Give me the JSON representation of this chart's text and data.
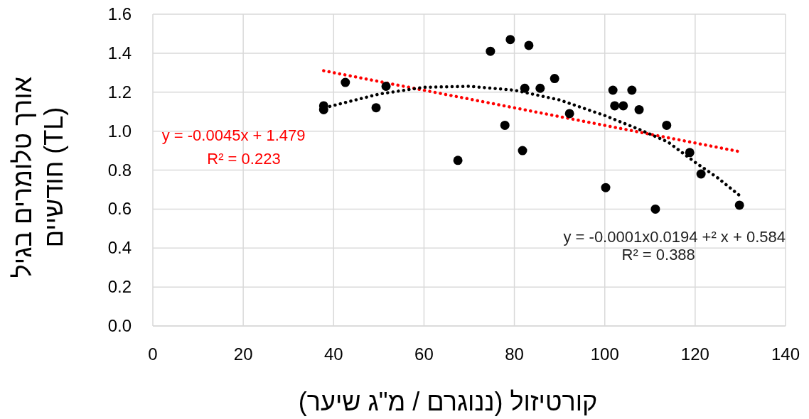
{
  "chart_data": {
    "type": "scatter",
    "xlabel": "קורטיזול (ננוגרם / מ\"ג שיער)",
    "ylabel": "אורך טלומרים בגיל\nחודשיים (TL)",
    "xlim": [
      0,
      140
    ],
    "xticks": [
      0,
      20,
      40,
      60,
      80,
      100,
      120,
      140
    ],
    "ylim": [
      0,
      1.6
    ],
    "yticks": [
      {
        "value": 0,
        "label": "0.0"
      },
      {
        "value": 0.2,
        "label": "0.2"
      },
      {
        "value": 0.4,
        "label": "0.4"
      },
      {
        "value": 0.6,
        "label": "0.6"
      },
      {
        "value": 0.8,
        "label": "0.8"
      },
      {
        "value": 1,
        "label": "1.0"
      },
      {
        "value": 1.2,
        "label": "1.2"
      },
      {
        "value": 1.4,
        "label": "1.4"
      },
      {
        "value": 1.6,
        "label": "1.6"
      }
    ],
    "grid": true,
    "series": [
      {
        "marker": "circle",
        "color": "#000000",
        "x": [
          37.8,
          37.8,
          42.6,
          49.4,
          51.6,
          67.5,
          74.7,
          79.1,
          77.9,
          83.2,
          82.3,
          81.8,
          85.7,
          88.9,
          92.2,
          100.2,
          101.8,
          102.2,
          104.1,
          106.0,
          107.6,
          111.2,
          113.7,
          118.8,
          121.3,
          129.8
        ],
        "values": [
          1.13,
          1.11,
          1.25,
          1.12,
          1.23,
          0.85,
          1.41,
          1.47,
          1.03,
          1.44,
          1.22,
          0.9,
          1.22,
          1.27,
          1.09,
          0.71,
          1.21,
          1.13,
          1.13,
          1.21,
          1.11,
          0.6,
          1.03,
          0.89,
          0.78,
          0.62
        ]
      },
      {
        "type": "line",
        "line_style": "dotted",
        "color": "#ff0000",
        "x": [
          37.8,
          129.8
        ],
        "values": [
          1.31,
          0.895
        ]
      },
      {
        "type": "line",
        "line_style": "dotted",
        "color": "#000000",
        "x": [
          38,
          50,
          60,
          70,
          80,
          90,
          100,
          108,
          114,
          120,
          125,
          129.8
        ],
        "values": [
          1.12,
          1.19,
          1.225,
          1.23,
          1.21,
          1.16,
          1.08,
          1.005,
          0.944,
          0.84,
          0.76,
          0.67
        ]
      }
    ],
    "annotations": [
      "y = -0.0045x + 1.479",
      "R² = 0.223",
      "y = -0.0001x0.0194 +² x + 0.584",
      "R² = 0.388"
    ]
  }
}
